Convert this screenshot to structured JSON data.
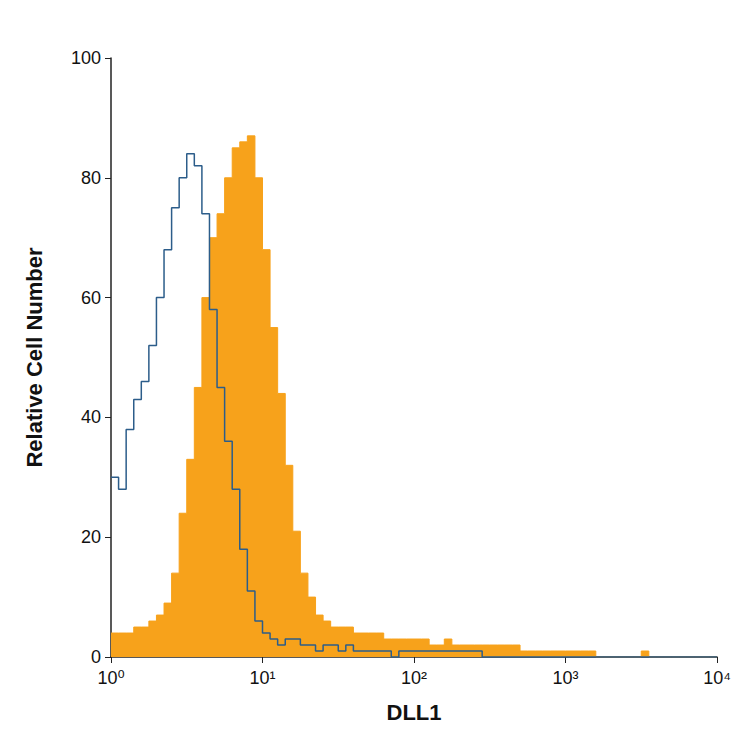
{
  "chart_data": {
    "type": "histogram",
    "x_label": "DLL1",
    "y_label": "Relative Cell Number",
    "log": "x",
    "grid": false,
    "bins": [
      1,
      1.122,
      1.259,
      1.413,
      1.585,
      1.778,
      1.995,
      2.239,
      2.512,
      2.818,
      3.162,
      3.548,
      3.981,
      4.467,
      5.012,
      5.623,
      6.31,
      7.079,
      7.943,
      8.913,
      10,
      11.22,
      12.59,
      14.13,
      15.85,
      17.78,
      19.95,
      22.39,
      25.12,
      28.18,
      31.62,
      35.48,
      39.81,
      44.67,
      50.12,
      56.23,
      63.1,
      70.79,
      79.43,
      89.13,
      100,
      112.2,
      125.9,
      141.3,
      158.5,
      177.8,
      199.5,
      223.9,
      251.2,
      281.8,
      316.2,
      354.8,
      398.1,
      446.7,
      501.2,
      562.3,
      631.0,
      707.9,
      794.3,
      891.3,
      1000,
      1122,
      1259,
      1413,
      1585,
      1778,
      1995,
      2239,
      2512,
      2818,
      3162,
      3548,
      3981,
      4467,
      5012,
      5623,
      6310,
      7079,
      7943,
      8913,
      10000
    ],
    "series": [
      {
        "type": "area",
        "color": "#f7a21b",
        "values": [
          4,
          4,
          4,
          5,
          5,
          6,
          7,
          9,
          14,
          24,
          33,
          45,
          60,
          70,
          74,
          80,
          85,
          86,
          87,
          80,
          68,
          55,
          44,
          32,
          21,
          14,
          10,
          7,
          6,
          5,
          5,
          5,
          4,
          4,
          4,
          4,
          3,
          3,
          3,
          3,
          3,
          3,
          2,
          2,
          3,
          2,
          2,
          2,
          2,
          2,
          2,
          2,
          2,
          2,
          1,
          1,
          1,
          1,
          1,
          1,
          1,
          1,
          1,
          1,
          0,
          0,
          0,
          0,
          0,
          0,
          1,
          0,
          0,
          0,
          0,
          0,
          0,
          0,
          0,
          0
        ]
      },
      {
        "type": "line",
        "color": "#2c5d8a",
        "values": [
          30,
          28,
          38,
          43,
          46,
          52,
          60,
          68,
          75,
          80,
          84,
          82,
          74,
          58,
          45,
          36,
          28,
          18,
          11,
          6,
          4,
          3,
          2,
          3,
          3,
          2,
          2,
          1,
          2,
          2,
          1,
          2,
          1,
          1,
          1,
          1,
          1,
          0,
          1,
          1,
          1,
          1,
          1,
          1,
          1,
          1,
          1,
          1,
          1,
          0,
          0,
          0,
          0,
          0,
          0,
          0,
          0,
          0,
          0,
          0,
          0,
          0,
          0,
          0,
          0,
          0,
          0,
          0,
          0,
          0,
          0,
          0,
          0,
          0,
          0,
          0,
          0,
          0,
          0,
          0
        ]
      }
    ],
    "xlim": [
      1,
      10000
    ],
    "xticks": [
      {
        "value": 1,
        "label": "10⁰"
      },
      {
        "value": 10,
        "label": "10¹"
      },
      {
        "value": 100,
        "label": "10²"
      },
      {
        "value": 1000,
        "label": "10³"
      },
      {
        "value": 10000,
        "label": "10⁴"
      }
    ],
    "ylim": [
      0,
      100
    ],
    "yticks": [
      0,
      20,
      40,
      60,
      80,
      100
    ]
  }
}
